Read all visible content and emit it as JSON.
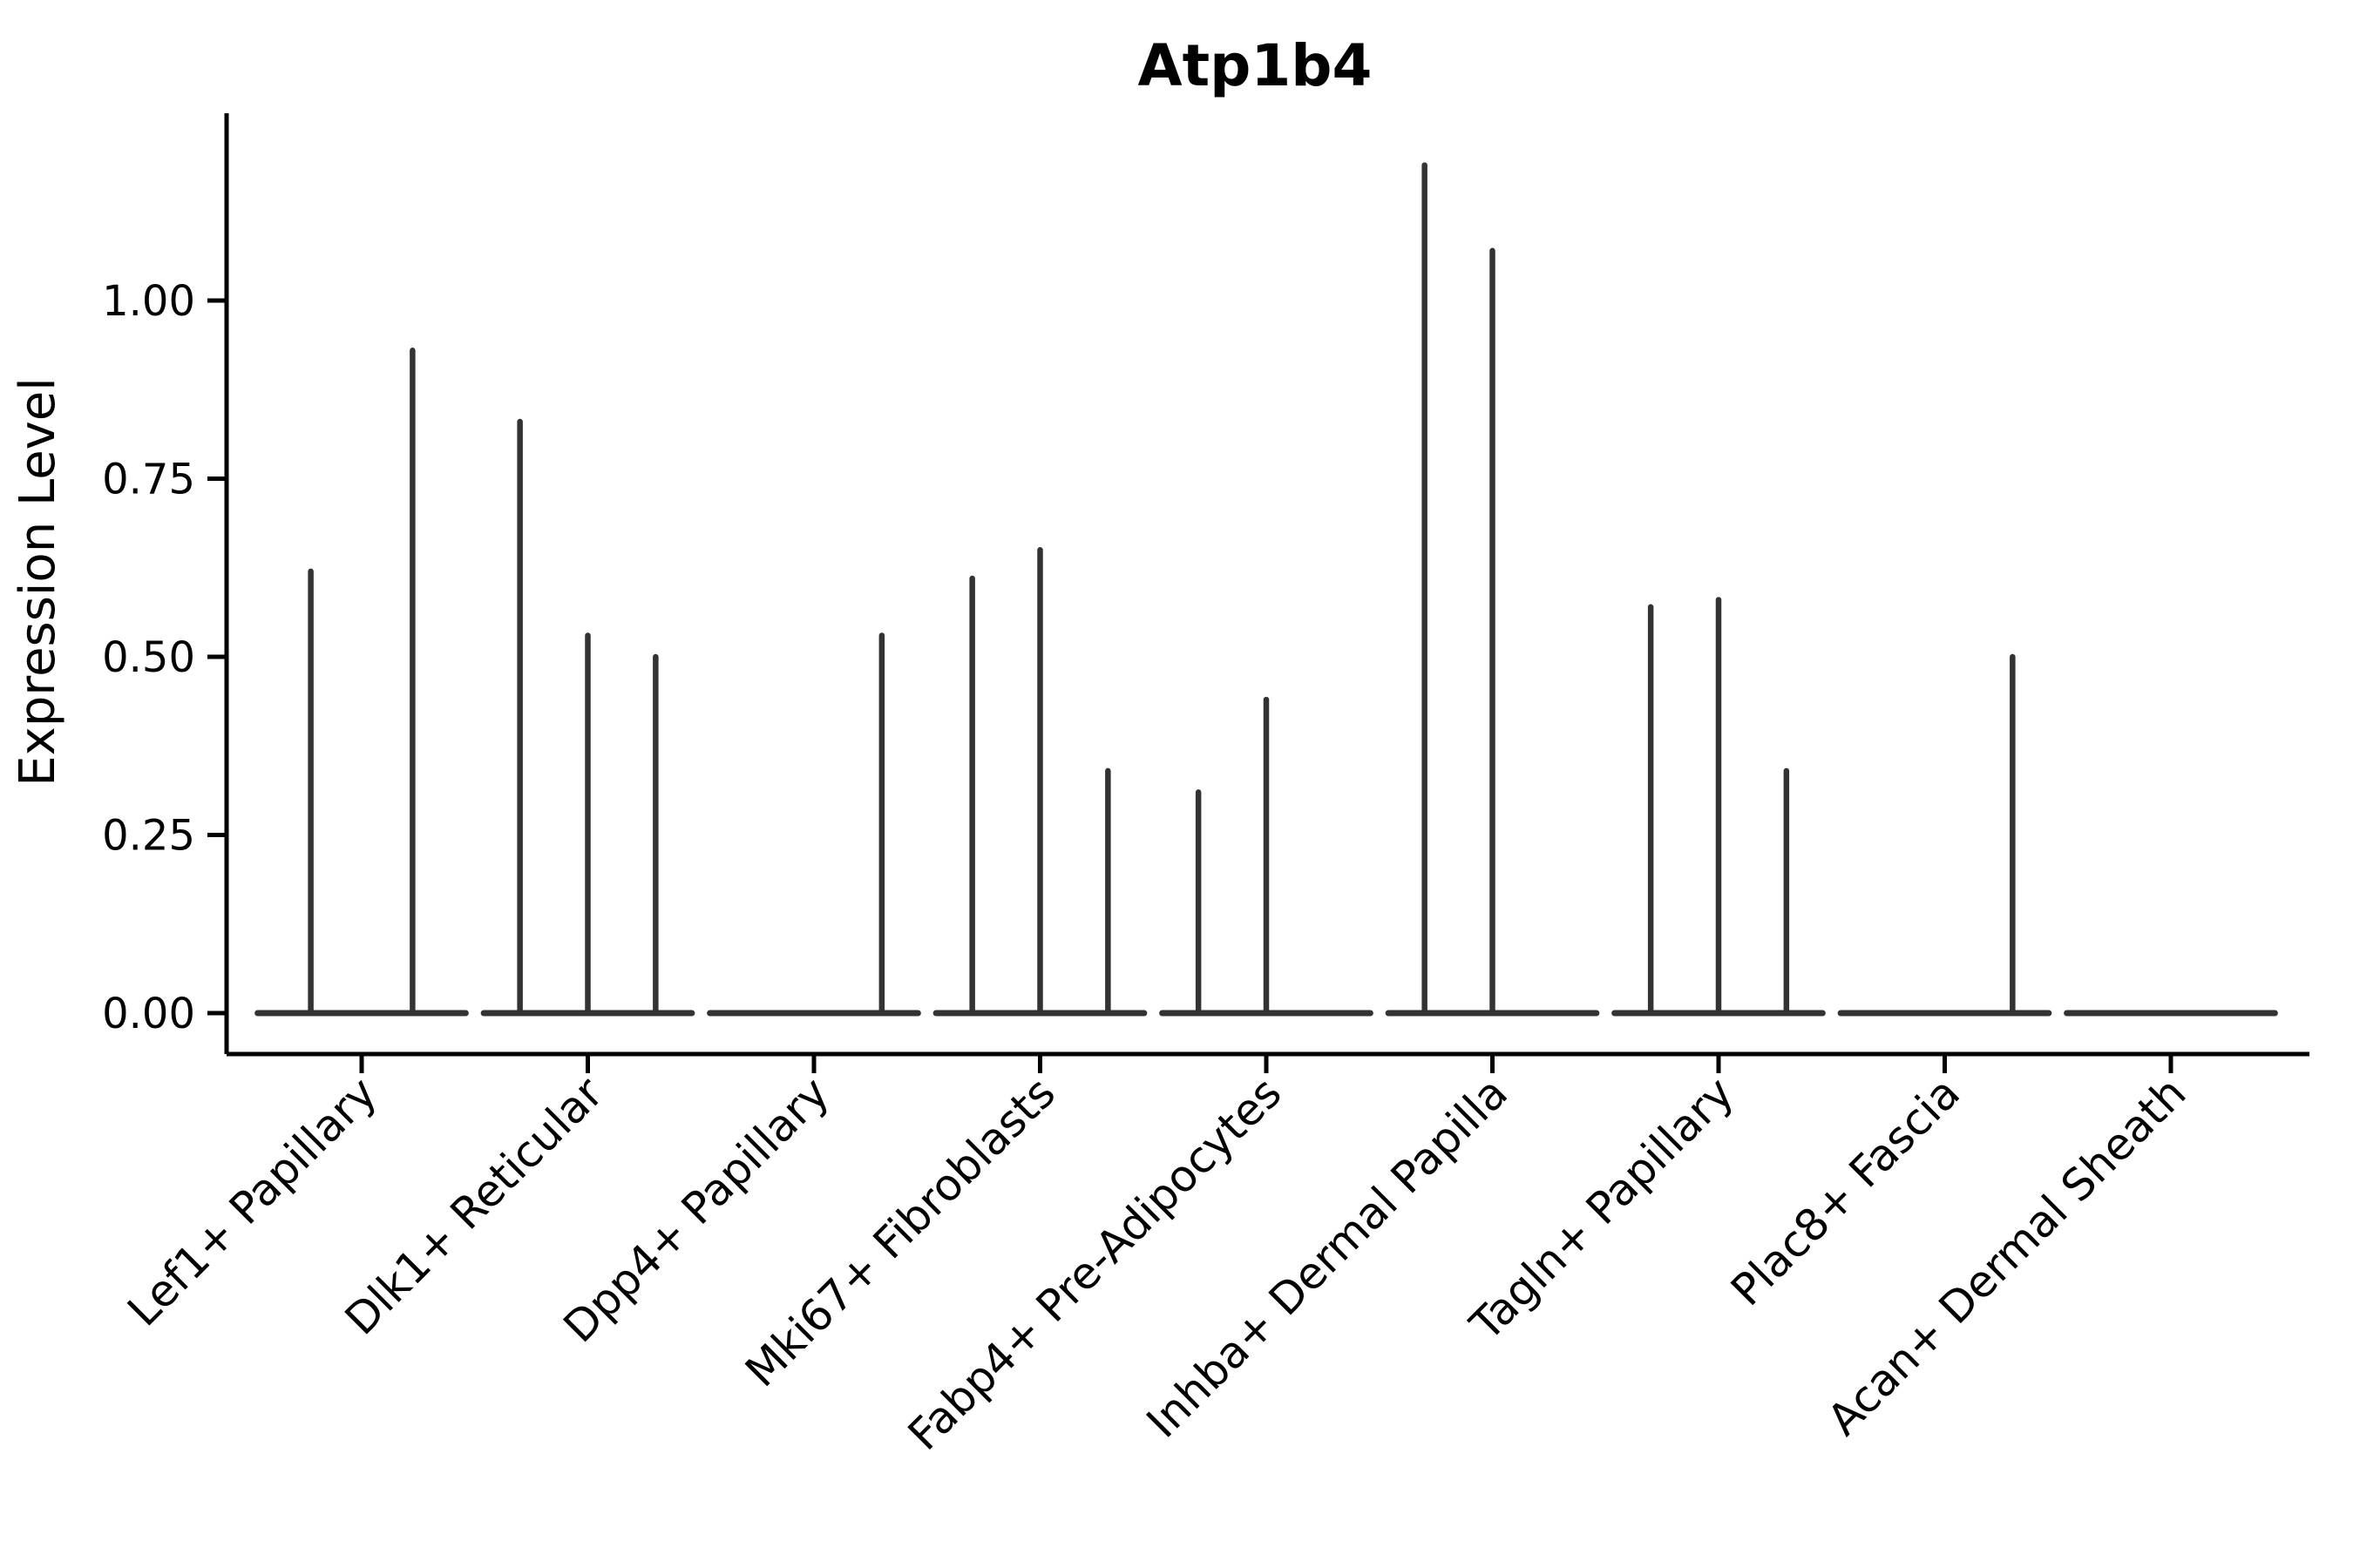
{
  "chart_data": {
    "type": "violin",
    "title": "Atp1b4",
    "ylabel": "Expression Level",
    "xlabel": "",
    "ylim": [
      -0.06,
      1.26
    ],
    "yticks": [
      0,
      0.25,
      0.5,
      0.75,
      1.0
    ],
    "ytick_labels": [
      "0.00",
      "0.25",
      "0.50",
      "0.75",
      "1.00"
    ],
    "x_tick_rotation_deg": 45,
    "grid": "off",
    "legend": "none",
    "categories": [
      "Lef1+ Papillary",
      "Dlk1+ Reticular",
      "Dpp4+ Papillary",
      "Mki67+ Fibroblasts",
      "Fabp4+ Pre-Adipocytes",
      "Inhba+ Dermal Papilla",
      "Tagln+ Papillary",
      "Plac8+ Fascia",
      "Acan+ Dermal Sheath"
    ],
    "baseline_value": 0.0,
    "baseline_halfwidth_units": 0.46,
    "groups": [
      {
        "category": "Lef1+ Papillary",
        "spikes": [
          {
            "pos": -0.225,
            "value": 0.62
          },
          {
            "pos": 0.225,
            "value": 0.93
          }
        ]
      },
      {
        "category": "Dlk1+ Reticular",
        "spikes": [
          {
            "pos": -0.3,
            "value": 0.83
          },
          {
            "pos": 0.0,
            "value": 0.53
          },
          {
            "pos": 0.3,
            "value": 0.5
          }
        ]
      },
      {
        "category": "Dpp4+ Papillary",
        "spikes": [
          {
            "pos": 0.3,
            "value": 0.53
          }
        ]
      },
      {
        "category": "Mki67+ Fibroblasts",
        "spikes": [
          {
            "pos": -0.3,
            "value": 0.61
          },
          {
            "pos": 0.0,
            "value": 0.65
          },
          {
            "pos": 0.3,
            "value": 0.34
          }
        ]
      },
      {
        "category": "Fabp4+ Pre-Adipocytes",
        "spikes": [
          {
            "pos": -0.3,
            "value": 0.31
          },
          {
            "pos": 0.0,
            "value": 0.44
          }
        ]
      },
      {
        "category": "Inhba+ Dermal Papilla",
        "spikes": [
          {
            "pos": -0.3,
            "value": 1.19
          },
          {
            "pos": 0.0,
            "value": 1.07
          }
        ]
      },
      {
        "category": "Tagln+ Papillary",
        "spikes": [
          {
            "pos": -0.3,
            "value": 0.57
          },
          {
            "pos": 0.0,
            "value": 0.58
          },
          {
            "pos": 0.3,
            "value": 0.34
          }
        ]
      },
      {
        "category": "Plac8+ Fascia",
        "spikes": [
          {
            "pos": 0.3,
            "value": 0.5
          }
        ]
      },
      {
        "category": "Acan+ Dermal Sheath",
        "spikes": []
      }
    ],
    "colors": {
      "violin_line": "#333333",
      "axis": "#000000",
      "text": "#000000",
      "background": "#ffffff"
    }
  }
}
